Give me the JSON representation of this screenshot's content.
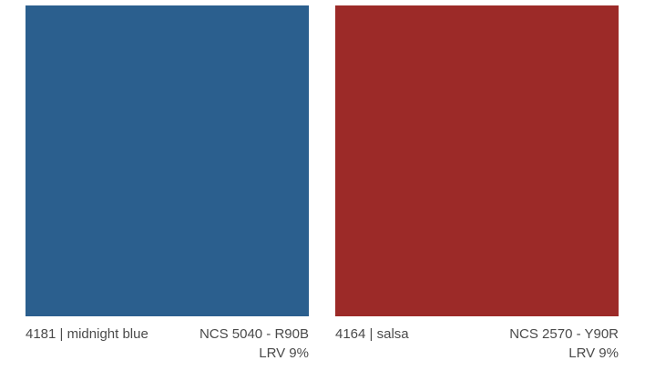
{
  "swatches": [
    {
      "name": "4181 | midnight blue",
      "ncs": "NCS 5040 - R90B",
      "lrv": "LRV 9%",
      "color": "#2b5f8e"
    },
    {
      "name": "4164 | salsa",
      "ncs": "NCS 2570 - Y90R",
      "lrv": "LRV 9%",
      "color": "#9c2a28"
    }
  ]
}
